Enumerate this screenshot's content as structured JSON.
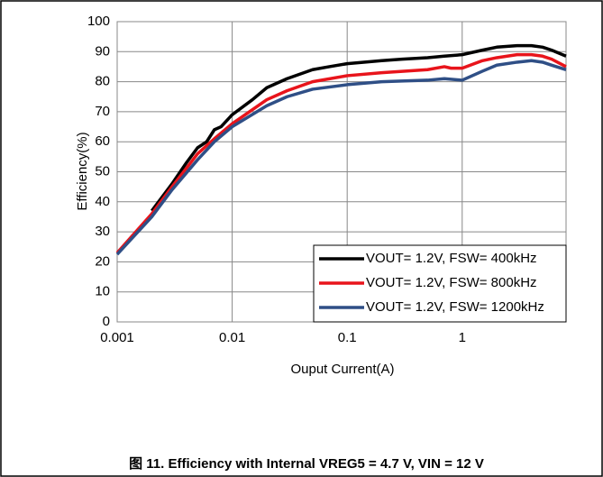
{
  "chart_data": {
    "type": "line",
    "x_label": "Ouput Current(A)",
    "y_label": "Efficiency(%)",
    "caption": "图 11. Efficiency with Internal VREG5 = 4.7 V, VIN = 12 V",
    "xlim": [
      0.001,
      8
    ],
    "xticks": [
      0.001,
      0.01,
      0.1,
      1
    ],
    "x_log": true,
    "ylim": [
      0,
      100
    ],
    "yticks": [
      0,
      10,
      20,
      30,
      40,
      50,
      60,
      70,
      80,
      90,
      100
    ],
    "grid": true,
    "legend": "lower right",
    "series": [
      {
        "name": "VOUT= 1.2V, FSW= 400kHz",
        "color": "#000000",
        "x": [
          0.002,
          0.003,
          0.004,
          0.005,
          0.006,
          0.007,
          0.008,
          0.01,
          0.015,
          0.02,
          0.03,
          0.05,
          0.07,
          0.1,
          0.2,
          0.3,
          0.5,
          0.7,
          1,
          1.5,
          2,
          3,
          4,
          5,
          6,
          8
        ],
        "values": [
          37,
          46,
          53,
          58,
          60,
          64,
          65,
          69,
          74,
          78,
          81,
          84,
          85,
          86,
          87,
          87.5,
          88,
          88.5,
          89,
          90.5,
          91.5,
          92,
          92,
          91.5,
          90.5,
          88.5
        ]
      },
      {
        "name": "VOUT= 1.2V, FSW= 800kHz",
        "color": "#e8141b",
        "x": [
          0.001,
          0.002,
          0.003,
          0.005,
          0.007,
          0.01,
          0.02,
          0.03,
          0.05,
          0.1,
          0.2,
          0.5,
          0.7,
          0.8,
          1,
          1.5,
          2,
          3,
          4,
          5,
          6,
          8
        ],
        "values": [
          23,
          36,
          45,
          56,
          61,
          66,
          74,
          77,
          80,
          82,
          83,
          84,
          85,
          84.5,
          84.5,
          87,
          88,
          89,
          89,
          88.5,
          87.5,
          85
        ]
      },
      {
        "name": "VOUT= 1.2V, FSW= 1200kHz",
        "color": "#2f4f86",
        "x": [
          0.001,
          0.002,
          0.003,
          0.005,
          0.007,
          0.01,
          0.02,
          0.03,
          0.05,
          0.1,
          0.2,
          0.5,
          0.7,
          1,
          1.5,
          2,
          3,
          4,
          5,
          6,
          8
        ],
        "values": [
          22.5,
          35,
          44,
          54,
          60,
          65,
          72,
          75,
          77.5,
          79,
          80,
          80.5,
          81,
          80.5,
          83.5,
          85.5,
          86.5,
          87,
          86.5,
          85.5,
          84
        ]
      }
    ]
  }
}
